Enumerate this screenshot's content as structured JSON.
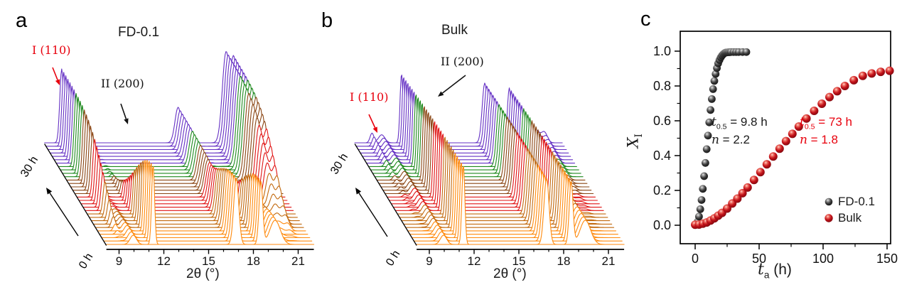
{
  "figure": {
    "background": "#ffffff"
  },
  "colors": {
    "accent_red": "#e8000d",
    "text_black": "#1a1a1a",
    "trace_palette": [
      "#FF8A0D",
      "#C2690E",
      "#E01212",
      "#8A4513",
      "#1E891E",
      "#6531C4"
    ]
  },
  "panels": {
    "a": {
      "label": "a",
      "title": "FD-0.1",
      "ann_phase1": "I (110)",
      "ann_phase2": "II (200)",
      "time_top": "30 h",
      "time_bottom": "0 h",
      "xlabel": "2θ (°)"
    },
    "b": {
      "label": "b",
      "title": "Bulk",
      "ann_phase1": "I (110)",
      "ann_phase2": "II (200)",
      "time_top": "30 h",
      "time_bottom": "0 h",
      "xlabel": "2θ (°)"
    },
    "c": {
      "label": "c",
      "ylabel": {
        "var": "X",
        "sub": "I"
      },
      "xlabel": {
        "var": "t",
        "sub": "a",
        "rest": " (h)"
      },
      "ann_fd": {
        "line1": {
          "var": "t",
          "sub": "0.5",
          "rest": " = 9.8 h"
        },
        "line2": {
          "var": "n",
          "rest": " = 2.2"
        }
      },
      "ann_bulk": {
        "line1": {
          "var": "t",
          "sub": "0.5",
          "rest": " = 73 h"
        },
        "line2": {
          "var": "n",
          "rest": " = 1.8"
        }
      },
      "legend": [
        {
          "label": "FD-0.1",
          "series": "fd"
        },
        {
          "label": "Bulk",
          "series": "bulk"
        }
      ]
    }
  },
  "chart_data": [
    {
      "type": "area",
      "subtype": "waterfall-xrd",
      "panel": "a",
      "title": "FD-0.1",
      "xlabel": "2θ (°)",
      "x_ticks": [
        9,
        12,
        15,
        18,
        21
      ],
      "x_minor_ticks": [
        10,
        11,
        13,
        14,
        16,
        17,
        19,
        20
      ],
      "x_range": [
        8.15,
        22.05
      ],
      "time_range_h": [
        0,
        30
      ],
      "n_traces": 31,
      "time_axis_labels": [
        "0 h",
        "30 h"
      ],
      "avrami": {
        "t05_h": 9.8,
        "n": 2.2
      },
      "phase2_peaks": [
        {
          "center": 9.95,
          "height": 13,
          "width": 0.3
        },
        {
          "center": 11.28,
          "height": 112,
          "width": 0.14
        },
        {
          "center": 16.85,
          "height": 93,
          "width": 0.24
        },
        {
          "center": 18.5,
          "height": 88,
          "width": 0.18
        },
        {
          "center": 19.45,
          "height": 34,
          "width": 0.5
        }
      ],
      "phase1_peaks": [
        {
          "center": 9.3,
          "height": 104,
          "width": 0.18
        },
        {
          "center": 17.1,
          "height": 50,
          "width": 0.3
        },
        {
          "center": 20.3,
          "height": 126,
          "width": 0.34
        },
        {
          "center": 20.85,
          "height": 112,
          "width": 0.28
        }
      ],
      "trace_color_groups": [
        {
          "from": 0,
          "to": 4,
          "color": "#FF8A0D"
        },
        {
          "from": 5,
          "to": 9,
          "color": "#C2690E"
        },
        {
          "from": 10,
          "to": 14,
          "color": "#E01212"
        },
        {
          "from": 15,
          "to": 19,
          "color": "#8A4513"
        },
        {
          "from": 20,
          "to": 23,
          "color": "#1E891E"
        },
        {
          "from": 24,
          "to": 30,
          "color": "#6531C4"
        }
      ]
    },
    {
      "type": "area",
      "subtype": "waterfall-xrd",
      "panel": "b",
      "title": "Bulk",
      "xlabel": "2θ (°)",
      "x_ticks": [
        9,
        12,
        15,
        18,
        21
      ],
      "x_minor_ticks": [
        10,
        11,
        13,
        14,
        16,
        17,
        19,
        20
      ],
      "x_range": [
        8.15,
        22.05
      ],
      "time_range_h": [
        0,
        30
      ],
      "n_traces": 31,
      "time_axis_labels": [
        "0 h",
        "30 h"
      ],
      "avrami": {
        "t05_h": 73,
        "n": 1.8
      },
      "phase2_peaks": [
        {
          "center": 9.95,
          "height": 13,
          "width": 0.3
        },
        {
          "center": 11.28,
          "height": 112,
          "width": 0.14
        },
        {
          "center": 16.85,
          "height": 93,
          "width": 0.24
        },
        {
          "center": 18.5,
          "height": 88,
          "width": 0.18
        },
        {
          "center": 19.45,
          "height": 34,
          "width": 0.5
        }
      ],
      "phase1_peaks": [
        {
          "center": 9.3,
          "height": 104,
          "width": 0.18
        },
        {
          "center": 17.1,
          "height": 50,
          "width": 0.3
        },
        {
          "center": 20.3,
          "height": 126,
          "width": 0.34
        },
        {
          "center": 20.85,
          "height": 112,
          "width": 0.28
        }
      ],
      "trace_color_groups": [
        {
          "from": 0,
          "to": 4,
          "color": "#FF8A0D"
        },
        {
          "from": 5,
          "to": 9,
          "color": "#C2690E"
        },
        {
          "from": 10,
          "to": 14,
          "color": "#E01212"
        },
        {
          "from": 15,
          "to": 19,
          "color": "#8A4513"
        },
        {
          "from": 20,
          "to": 23,
          "color": "#1E891E"
        },
        {
          "from": 24,
          "to": 30,
          "color": "#6531C4"
        }
      ]
    },
    {
      "type": "scatter",
      "panel": "c",
      "xlabel": "t_a (h)",
      "ylabel": "X_I",
      "x_ticks": [
        0,
        50,
        100,
        150
      ],
      "x_minor_ticks": [
        25,
        75,
        125
      ],
      "y_ticks": [
        0.0,
        0.2,
        0.4,
        0.6,
        0.8,
        1.0
      ],
      "y_minor_ticks": [
        0.1,
        0.3,
        0.5,
        0.7,
        0.9
      ],
      "x_range": [
        -11.7,
        153
      ],
      "y_range": [
        -0.106,
        1.114
      ],
      "series": [
        {
          "name": "FD-0.1",
          "marker": "sphere-black",
          "t05_h": 9.8,
          "avrami_n": 2.2,
          "x": [
            1,
            2,
            3,
            4,
            5,
            6,
            7,
            8,
            9,
            10,
            11,
            12,
            13,
            14,
            15,
            16,
            17,
            18,
            19,
            20,
            21,
            22,
            23,
            24,
            25,
            26,
            27,
            28,
            30,
            32,
            34,
            37,
            40
          ],
          "y": [
            0.005,
            0.021,
            0.05,
            0.092,
            0.145,
            0.209,
            0.282,
            0.358,
            0.437,
            0.515,
            0.591,
            0.662,
            0.725,
            0.782,
            0.829,
            0.869,
            0.903,
            0.93,
            0.949,
            0.964,
            0.975,
            0.983,
            0.989,
            0.992,
            0.993,
            0.994,
            0.994,
            0.995,
            0.995,
            0.995,
            0.995,
            0.995,
            0.995
          ]
        },
        {
          "name": "Bulk",
          "marker": "sphere-red",
          "t05_h": 73,
          "avrami_n": 1.8,
          "x": [
            0,
            3,
            6,
            9,
            12,
            15,
            18,
            21,
            25,
            29,
            33,
            37,
            41,
            46,
            51,
            56,
            61,
            66,
            71,
            76,
            81,
            87,
            93,
            99,
            105,
            111,
            117,
            124,
            131,
            138,
            145,
            152
          ],
          "y": [
            0.003,
            0.004,
            0.009,
            0.016,
            0.027,
            0.04,
            0.055,
            0.071,
            0.096,
            0.125,
            0.153,
            0.184,
            0.217,
            0.26,
            0.305,
            0.35,
            0.395,
            0.44,
            0.483,
            0.525,
            0.567,
            0.613,
            0.657,
            0.698,
            0.736,
            0.77,
            0.8,
            0.833,
            0.858,
            0.872,
            0.881,
            0.887
          ]
        }
      ]
    }
  ]
}
